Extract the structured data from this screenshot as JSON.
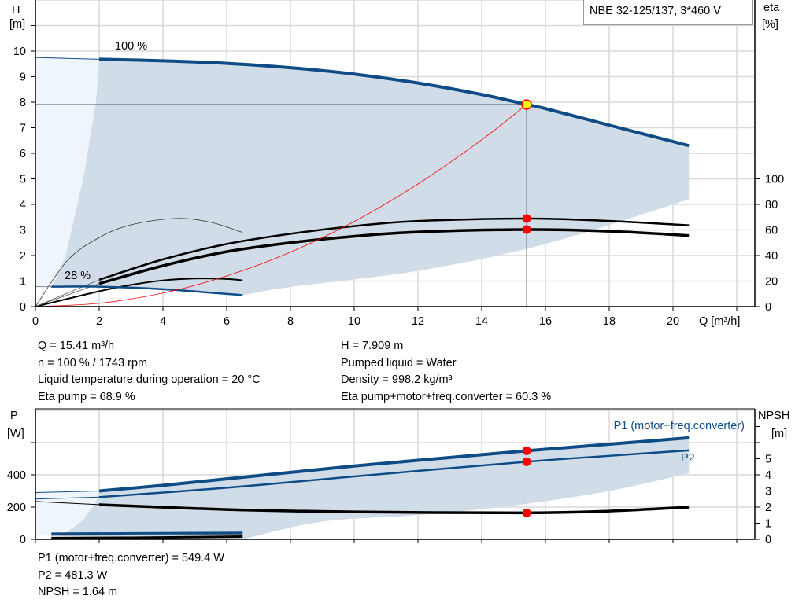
{
  "title": "NBE 32-125/137, 3*460 V",
  "colors": {
    "curve_blue": "#0f4c86",
    "shade_dark": "#d0dce7",
    "shade_light": "#eef5fd",
    "system_curve": "#ff0000",
    "duty_point": "#ff0000",
    "duty_point_top": "#ffff00",
    "grid": "#d9d9d9"
  },
  "chart_data": [
    {
      "type": "line",
      "xlabel": "Q [m³/h]",
      "ylabel": "H\n[m]",
      "ylabel_unit_name": "H",
      "ylabel_unit": "[m]",
      "y2label_name": "eta",
      "y2label_unit": "[%]",
      "xlim": [
        0,
        22.5
      ],
      "ylim": [
        0,
        12
      ],
      "y2lim": [
        0,
        240
      ],
      "x_ticks": [
        "0",
        "2",
        "4",
        "6",
        "8",
        "10",
        "12",
        "14",
        "16",
        "18",
        "20"
      ],
      "y_ticks": [
        "0",
        "1",
        "2",
        "3",
        "4",
        "5",
        "6",
        "7",
        "8",
        "9",
        "10"
      ],
      "y2_ticks": [
        "0",
        "20",
        "40",
        "60",
        "80",
        "100"
      ],
      "grid": true,
      "annotations": [
        "100 %",
        "28 %"
      ],
      "series": [
        {
          "id": "H_100",
          "axis": "H",
          "x": [
            0,
            2,
            4,
            6,
            8,
            10,
            12,
            14,
            15.41,
            16,
            18,
            20.5
          ],
          "y": [
            9.75,
            9.68,
            9.62,
            9.52,
            9.35,
            9.1,
            8.75,
            8.3,
            7.909,
            7.75,
            7.1,
            6.3
          ]
        },
        {
          "id": "H_28",
          "axis": "H",
          "x": [
            0.5,
            2,
            4,
            6.5
          ],
          "y": [
            0.78,
            0.78,
            0.68,
            0.45
          ]
        },
        {
          "id": "system_curve",
          "axis": "H",
          "x": [
            0,
            2,
            4,
            6,
            8,
            10,
            12,
            14,
            15.41
          ],
          "y": [
            0,
            0.13,
            0.53,
            1.2,
            2.13,
            3.33,
            4.8,
            6.53,
            7.909
          ]
        },
        {
          "id": "eta_pump_100",
          "axis": "eta",
          "x": [
            2,
            4,
            6,
            8,
            10,
            12,
            15.41,
            18,
            20.5
          ],
          "y": [
            21,
            37,
            49,
            57,
            63,
            67,
            68.9,
            67,
            63.6
          ]
        },
        {
          "id": "eta_total_100",
          "axis": "eta",
          "x": [
            2,
            4,
            6,
            8,
            10,
            12,
            15.41,
            18,
            20.5
          ],
          "y": [
            18,
            32,
            43,
            50,
            55,
            58.4,
            60.3,
            59,
            55.6
          ]
        },
        {
          "id": "eta_pump_28",
          "axis": "eta",
          "x": [
            0,
            1,
            2,
            3,
            4.4,
            5.5,
            6.5
          ],
          "y": [
            0,
            36,
            54,
            64,
            69,
            66,
            58
          ]
        },
        {
          "id": "eta_total_28",
          "axis": "eta",
          "x": [
            0,
            2,
            3,
            4,
            5,
            6,
            6.5
          ],
          "y": [
            0,
            12,
            17,
            20.5,
            22,
            21.6,
            20.6
          ]
        }
      ],
      "duty_point": {
        "Q": 15.41,
        "H": 7.909,
        "eta_pump": 68.9,
        "eta_total": 60.3
      }
    },
    {
      "type": "line",
      "ylabel_name": "P",
      "ylabel_unit": "[W]",
      "y2label_name": "NPSH",
      "y2label_unit": "[m]",
      "xlim": [
        0,
        22.5
      ],
      "ylim": [
        0,
        810
      ],
      "y2lim": [
        0,
        8.1
      ],
      "y_ticks": [
        "0",
        "200",
        "400"
      ],
      "y2_ticks": [
        "0",
        "1",
        "2",
        "3",
        "4",
        "5"
      ],
      "grid": true,
      "legend": [
        "P1 (motor+freq.converter)",
        "P2"
      ],
      "series": [
        {
          "id": "P1_100",
          "name": "P1 (motor+freq.converter)",
          "axis": "P",
          "x": [
            0,
            2,
            4,
            6,
            8,
            10,
            12,
            15.41,
            18,
            20.5
          ],
          "y": [
            290,
            300,
            335,
            375,
            415,
            455,
            490,
            549.4,
            590,
            630
          ]
        },
        {
          "id": "P2_100",
          "name": "P2",
          "axis": "P",
          "x": [
            0,
            2,
            6,
            10,
            15.41,
            18,
            20.5
          ],
          "y": [
            250,
            262,
            320,
            390,
            481.3,
            518,
            552
          ]
        },
        {
          "id": "NPSH_100",
          "axis": "NPSH",
          "x": [
            0,
            2,
            6,
            10,
            15.41,
            18,
            20.5
          ],
          "y": [
            2.35,
            2.15,
            1.85,
            1.7,
            1.64,
            1.75,
            2.0
          ]
        },
        {
          "id": "P1_28",
          "axis": "P",
          "x": [
            0.5,
            6.5
          ],
          "y": [
            35,
            40
          ]
        },
        {
          "id": "P2_28",
          "axis": "P",
          "x": [
            0.5,
            6.5
          ],
          "y": [
            25,
            30
          ]
        },
        {
          "id": "NPSH_28",
          "axis": "NPSH",
          "x": [
            0.5,
            3,
            6.5
          ],
          "y": [
            0.08,
            0.1,
            0.17
          ]
        }
      ],
      "duty_point": {
        "P1": 549.4,
        "P2": 481.3,
        "NPSH": 1.64
      }
    }
  ],
  "info_top_left": [
    "Q = 15.41 m³/h",
    "n = 100 % / 1743 rpm",
    "Liquid temperature during operation = 20 °C",
    "Eta pump = 68.9 %"
  ],
  "info_top_right": [
    "H = 7.909 m",
    "Pumped liquid = Water",
    "Density = 998.2 kg/m³",
    "Eta pump+motor+freq.converter = 60.3 %"
  ],
  "info_bottom": [
    "P1 (motor+freq.converter) = 549.4 W",
    "P2 = 481.3 W",
    "NPSH = 1.64 m"
  ]
}
